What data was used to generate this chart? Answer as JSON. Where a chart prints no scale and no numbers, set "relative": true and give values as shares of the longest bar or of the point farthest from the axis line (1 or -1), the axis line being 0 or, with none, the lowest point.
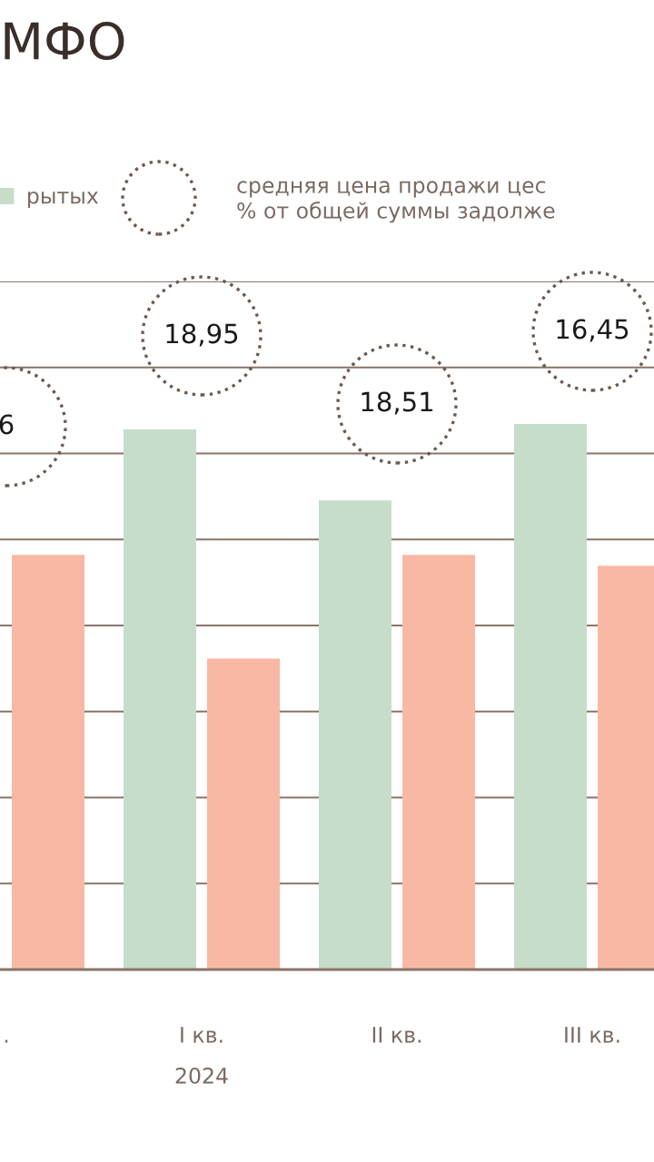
{
  "chart_data": {
    "type": "bar",
    "title": "МФО",
    "relative": true,
    "grid": "y",
    "legend": "top",
    "categories": [
      ".",
      "I кв.",
      "II кв.",
      "III кв."
    ],
    "series": [
      {
        "name": "рытых",
        "color": "#c5ddc9",
        "values": [
          null,
          0.99,
          0.86,
          1.0
        ]
      },
      {
        "color": "#f9b8a4",
        "values": [
          0.76,
          0.57,
          0.76,
          0.74
        ]
      }
    ],
    "annotations": [
      "средняя цена продажи цес\n% от общей суммы задолже",
      "6",
      "18,95",
      "18,51",
      "16,45",
      "2024"
    ]
  }
}
